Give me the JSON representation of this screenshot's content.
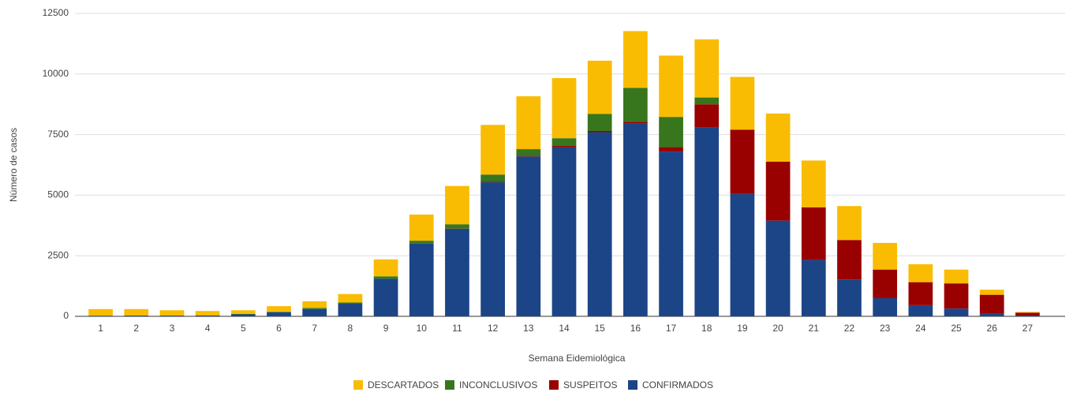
{
  "chart_data": {
    "type": "stacked-bar",
    "x_label": "Semana Eidemiológica",
    "y_label": "Número de casos",
    "categories": [
      "1",
      "2",
      "3",
      "4",
      "5",
      "6",
      "7",
      "8",
      "9",
      "10",
      "11",
      "12",
      "13",
      "14",
      "15",
      "16",
      "17",
      "18",
      "19",
      "20",
      "21",
      "22",
      "23",
      "24",
      "25",
      "26",
      "27"
    ],
    "series": [
      {
        "name": "CONFIRMADOS",
        "color": "#1c4587",
        "values": [
          20,
          30,
          30,
          40,
          80,
          170,
          300,
          520,
          1550,
          3000,
          3600,
          5530,
          6600,
          6980,
          7600,
          7950,
          6800,
          7800,
          5050,
          3950,
          2330,
          1520,
          750,
          460,
          320,
          110,
          30
        ]
      },
      {
        "name": "SUSPEITOS",
        "color": "#990000",
        "values": [
          0,
          0,
          0,
          0,
          0,
          0,
          0,
          0,
          0,
          20,
          20,
          20,
          30,
          50,
          50,
          80,
          180,
          950,
          2650,
          2430,
          2170,
          1630,
          1180,
          950,
          1040,
          780,
          120
        ]
      },
      {
        "name": "INCONCLUSIVOS",
        "color": "#38761d",
        "values": [
          10,
          10,
          0,
          0,
          20,
          20,
          50,
          50,
          100,
          100,
          180,
          300,
          270,
          320,
          700,
          1400,
          1250,
          280,
          0,
          0,
          0,
          0,
          0,
          0,
          0,
          0,
          0
        ]
      },
      {
        "name": "DESCARTADOS",
        "color": "#f9bc02",
        "values": [
          270,
          260,
          220,
          180,
          150,
          230,
          270,
          350,
          700,
          1080,
          1580,
          2050,
          2180,
          2480,
          2200,
          2340,
          2530,
          2400,
          2180,
          1990,
          1930,
          1400,
          1100,
          740,
          570,
          210,
          30
        ]
      }
    ],
    "ylim": [
      0,
      12500
    ],
    "yticks": [
      0,
      2500,
      5000,
      7500,
      10000,
      12500
    ],
    "grid": true
  }
}
